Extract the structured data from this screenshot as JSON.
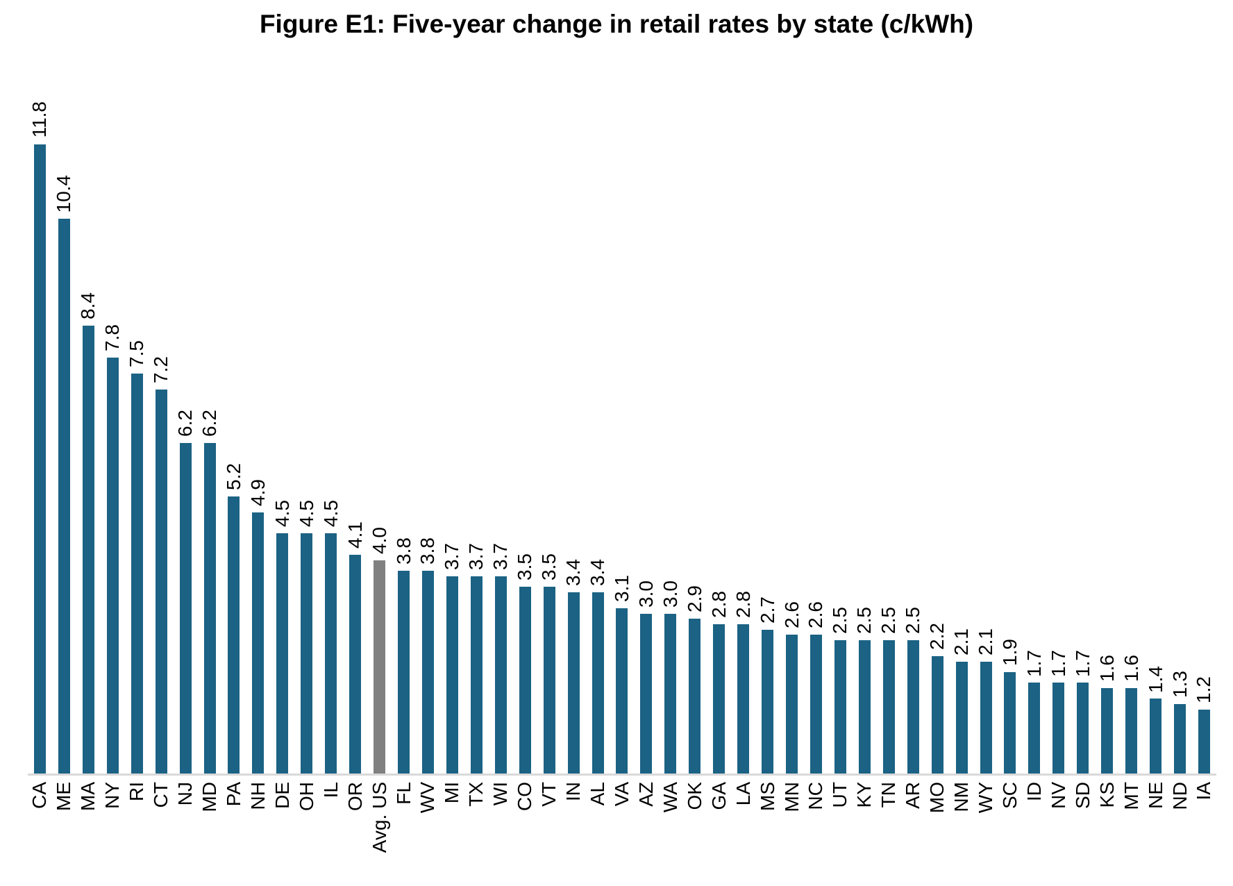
{
  "chart_data": {
    "type": "bar",
    "title": "Figure E1: Five-year change in retail rates by state (c/kWh)",
    "xlabel": "",
    "ylabel": "",
    "ylim": [
      0,
      12.5
    ],
    "grid": false,
    "legend": false,
    "value_label_format": "one_decimal",
    "labels_rotated_90": true,
    "categories": [
      "CA",
      "ME",
      "MA",
      "NY",
      "RI",
      "CT",
      "NJ",
      "MD",
      "PA",
      "NH",
      "DE",
      "OH",
      "IL",
      "OR",
      "Avg. US",
      "FL",
      "WV",
      "MI",
      "TX",
      "WI",
      "CO",
      "VT",
      "IN",
      "AL",
      "VA",
      "AZ",
      "WA",
      "OK",
      "GA",
      "LA",
      "MS",
      "MN",
      "NC",
      "UT",
      "KY",
      "TN",
      "AR",
      "MO",
      "NM",
      "WY",
      "SC",
      "ID",
      "NV",
      "SD",
      "KS",
      "MT",
      "NE",
      "ND",
      "IA"
    ],
    "values": [
      11.8,
      10.4,
      8.4,
      7.8,
      7.5,
      7.2,
      6.2,
      6.2,
      5.2,
      4.9,
      4.5,
      4.5,
      4.5,
      4.1,
      4.0,
      3.8,
      3.8,
      3.7,
      3.7,
      3.7,
      3.5,
      3.5,
      3.4,
      3.4,
      3.1,
      3.0,
      3.0,
      2.9,
      2.8,
      2.8,
      2.7,
      2.6,
      2.6,
      2.5,
      2.5,
      2.5,
      2.5,
      2.2,
      2.1,
      2.1,
      1.9,
      1.7,
      1.7,
      1.7,
      1.6,
      1.6,
      1.4,
      1.3,
      1.2
    ],
    "highlight_category": "Avg. US",
    "highlight_index": 14,
    "colors": {
      "bar": "#1B6284",
      "highlight_bar": "#808080",
      "label": "#000000",
      "axis_line": "#D9D9D9",
      "title": "#000000"
    }
  }
}
